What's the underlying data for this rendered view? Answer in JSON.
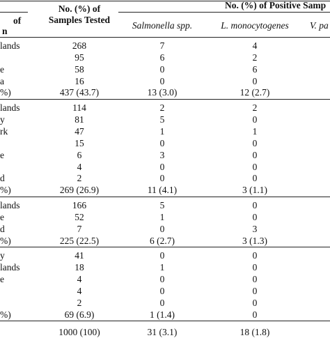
{
  "header": {
    "origin_line1": "of",
    "origin_line2": "n",
    "tested_line1": "No. (%) of",
    "tested_line2": "Samples Tested",
    "positive_span": "No. (%) of Positive Samp",
    "col_salmonella": "Salmonella spp.",
    "col_listeria": "L. monocytogenes",
    "col_vibrio": "V. pa"
  },
  "groups": [
    {
      "rows": [
        {
          "origin": "lands",
          "tested": "268",
          "salmonella": "7",
          "listeria": "4"
        },
        {
          "origin": "",
          "tested": "95",
          "salmonella": "6",
          "listeria": "2"
        },
        {
          "origin": "e",
          "tested": "58",
          "salmonella": "0",
          "listeria": "6"
        },
        {
          "origin": "a",
          "tested": "16",
          "salmonella": "0",
          "listeria": "0"
        }
      ],
      "subtotal": {
        "origin": "%)",
        "tested": "437 (43.7)",
        "salmonella": "13 (3.0)",
        "listeria": "12 (2.7)"
      }
    },
    {
      "rows": [
        {
          "origin": "lands",
          "tested": "114",
          "salmonella": "2",
          "listeria": "2"
        },
        {
          "origin": "y",
          "tested": "81",
          "salmonella": "5",
          "listeria": "0"
        },
        {
          "origin": "rk",
          "tested": "47",
          "salmonella": "1",
          "listeria": "1"
        },
        {
          "origin": "",
          "tested": "15",
          "salmonella": "0",
          "listeria": "0"
        },
        {
          "origin": "e",
          "tested": "6",
          "salmonella": "3",
          "listeria": "0"
        },
        {
          "origin": "",
          "tested": "4",
          "salmonella": "0",
          "listeria": "0"
        },
        {
          "origin": "d",
          "tested": "2",
          "salmonella": "0",
          "listeria": "0"
        }
      ],
      "subtotal": {
        "origin": "%)",
        "tested": "269 (26.9)",
        "salmonella": "11 (4.1)",
        "listeria": "3 (1.1)"
      }
    },
    {
      "rows": [
        {
          "origin": "lands",
          "tested": "166",
          "salmonella": "5",
          "listeria": "0"
        },
        {
          "origin": "e",
          "tested": "52",
          "salmonella": "1",
          "listeria": "0"
        },
        {
          "origin": "d",
          "tested": "7",
          "salmonella": "0",
          "listeria": "3"
        }
      ],
      "subtotal": {
        "origin": "%)",
        "tested": "225 (22.5)",
        "salmonella": "6 (2.7)",
        "listeria": "3 (1.3)"
      }
    },
    {
      "rows": [
        {
          "origin": "y",
          "tested": "41",
          "salmonella": "0",
          "listeria": "0"
        },
        {
          "origin": "lands",
          "tested": "18",
          "salmonella": "1",
          "listeria": "0"
        },
        {
          "origin": "e",
          "tested": "4",
          "salmonella": "0",
          "listeria": "0"
        },
        {
          "origin": "",
          "tested": "4",
          "salmonella": "0",
          "listeria": "0"
        },
        {
          "origin": "",
          "tested": "2",
          "salmonella": "0",
          "listeria": "0"
        }
      ],
      "subtotal": {
        "origin": "%)",
        "tested": "69 (6.9)",
        "salmonella": "1 (1.4)",
        "listeria": "0"
      }
    }
  ],
  "total": {
    "origin": "",
    "tested": "1000 (100)",
    "salmonella": "31 (3.1)",
    "listeria": "18 (1.8)"
  }
}
